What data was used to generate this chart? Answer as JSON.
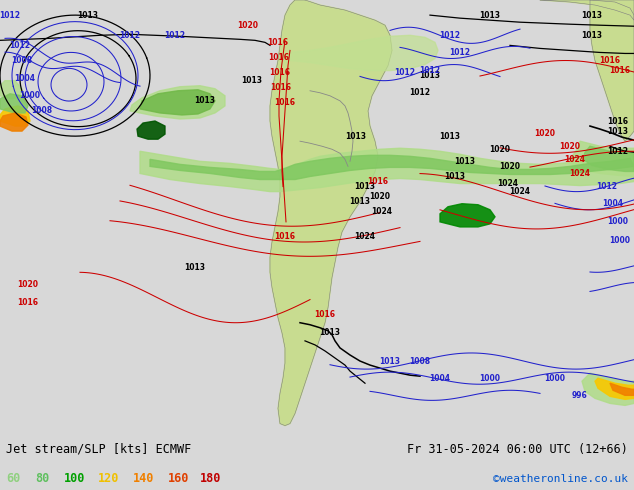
{
  "title_left": "Jet stream/SLP [kts] ECMWF",
  "title_right": "Fr 31-05-2024 06:00 UTC (12+66)",
  "watermark": "©weatheronline.co.uk",
  "legend_values": [
    "60",
    "80",
    "100",
    "120",
    "140",
    "160",
    "180"
  ],
  "legend_colors": [
    "#90d080",
    "#60c060",
    "#00a000",
    "#f0c000",
    "#f08000",
    "#e04000",
    "#c00000"
  ],
  "bg_color": "#d8d8d8",
  "map_bg": "#d8d8d8",
  "bottom_bar_color": "#ffffff",
  "title_color": "#000000",
  "watermark_color": "#0055cc",
  "figsize": [
    6.34,
    4.9
  ],
  "dpi": 100
}
